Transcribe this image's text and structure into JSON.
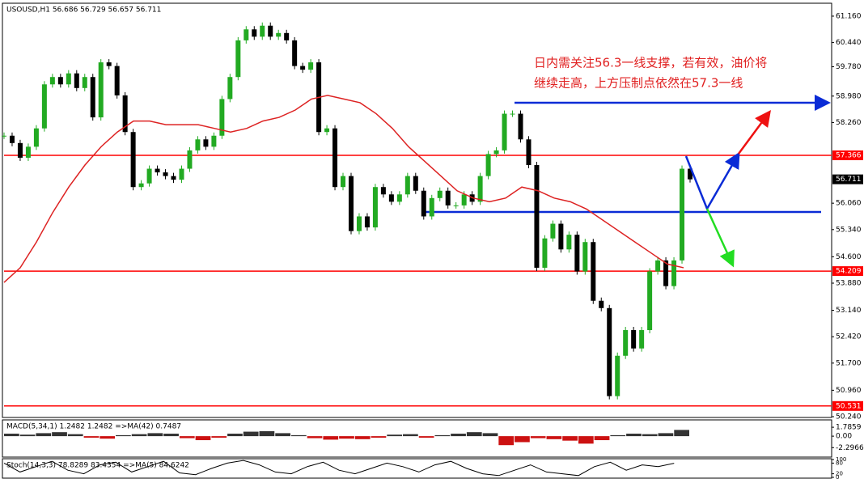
{
  "chart_data": {
    "type": "candlestick",
    "title": "USOUSD,H1  56.686 56.729 56.657 56.711",
    "annotation": [
      "日内需关注56.3一线支撑，若有效，油价将",
      "继续走高，上方压制点依然在57.3一线"
    ],
    "ylim": [
      50.24,
      61.49
    ],
    "yticks": [
      {
        "value": 61.16,
        "label": "61.160"
      },
      {
        "value": 60.44,
        "label": "60.440"
      },
      {
        "value": 59.78,
        "label": "59.780"
      },
      {
        "value": 58.98,
        "label": "58.980"
      },
      {
        "value": 58.26,
        "label": "58.260"
      },
      {
        "value": 56.06,
        "label": "56.060"
      },
      {
        "value": 55.34,
        "label": "55.340"
      },
      {
        "value": 54.6,
        "label": "54.600"
      },
      {
        "value": 53.88,
        "label": "53.880"
      },
      {
        "value": 53.14,
        "label": "53.140"
      },
      {
        "value": 52.42,
        "label": "52.420"
      },
      {
        "value": 51.7,
        "label": "51.700"
      },
      {
        "value": 50.96,
        "label": "50.960"
      },
      {
        "value": 50.24,
        "label": "50.240"
      }
    ],
    "close": [
      57.9,
      57.7,
      57.3,
      57.6,
      58.1,
      59.3,
      59.5,
      59.3,
      59.6,
      59.2,
      59.5,
      58.4,
      59.9,
      59.8,
      59.0,
      58.0,
      56.5,
      56.6,
      57.0,
      56.9,
      56.8,
      56.7,
      57.0,
      57.5,
      57.8,
      57.6,
      57.9,
      58.9,
      59.5,
      60.5,
      60.8,
      60.6,
      60.9,
      60.6,
      60.7,
      60.5,
      59.8,
      59.7,
      59.9,
      58.0,
      58.1,
      56.5,
      56.8,
      55.3,
      55.7,
      55.4,
      56.5,
      56.3,
      56.1,
      56.3,
      56.8,
      56.4,
      55.7,
      56.2,
      56.4,
      56.0,
      56.0,
      56.3,
      56.1,
      56.8,
      57.4,
      57.5,
      58.5,
      58.5,
      57.8,
      57.1,
      54.3,
      55.1,
      55.5,
      54.8,
      55.2,
      54.2,
      55.0,
      53.4,
      53.2,
      50.8,
      51.9,
      52.6,
      52.1,
      52.6,
      54.2,
      54.5,
      53.8,
      54.5,
      57.0,
      56.711
    ],
    "up_color": "#22aa22",
    "down_color": "#000000",
    "ma": {
      "color": "#dd2222",
      "values": [
        53.9,
        54.3,
        55.0,
        55.8,
        56.5,
        57.1,
        57.6,
        58.0,
        58.3,
        58.3,
        58.2,
        58.2,
        58.2,
        58.1,
        58.0,
        58.1,
        58.3,
        58.4,
        58.6,
        58.9,
        59.0,
        58.9,
        58.8,
        58.5,
        58.1,
        57.6,
        57.2,
        56.8,
        56.4,
        56.2,
        56.1,
        56.2,
        56.5,
        56.4,
        56.2,
        56.1,
        55.9,
        55.6,
        55.3,
        55.0,
        54.7,
        54.4,
        54.3
      ]
    },
    "levels": [
      {
        "value": 57.366,
        "color": "#ff0000",
        "labeled": true
      },
      {
        "value": 54.209,
        "color": "#ff0000",
        "labeled": true
      },
      {
        "value": 50.531,
        "color": "#ff0000",
        "labeled": true
      },
      {
        "value": 58.8,
        "color": "#0a2bd6",
        "labeled": false
      },
      {
        "value": 55.82,
        "color": "#0a2bd6",
        "labeled": false
      }
    ],
    "current_price": 56.711,
    "macd": {
      "label": "MACD(5,34,1) 1.2482 1.2482 =>MA(42) 0.7487",
      "ylim": [
        -4.2,
        3.1
      ],
      "yticks": [
        1.7859,
        {
          "value": 0,
          "label": "0.00"
        },
        -2.2966
      ],
      "values": [
        0.5,
        0.3,
        0.6,
        0.8,
        0.4,
        -0.3,
        -0.5,
        0.2,
        0.4,
        0.6,
        0.5,
        -0.4,
        -0.8,
        -0.3,
        0.5,
        0.9,
        1.0,
        0.6,
        0.2,
        -0.4,
        -0.7,
        -0.5,
        -0.6,
        -0.3,
        0.3,
        0.4,
        -0.3,
        0.2,
        0.5,
        0.8,
        0.6,
        -1.8,
        -1.2,
        -0.4,
        -0.6,
        -0.9,
        -1.5,
        -0.8,
        0.2,
        0.5,
        0.4,
        0.6,
        1.25
      ]
    },
    "stoch": {
      "label": "Stoch(14,3,3) 78.8289 83.4354 =>MA(5) 84.6242",
      "ylim": [
        0,
        100
      ],
      "yticks": [
        100,
        80,
        20,
        0
      ],
      "values": [
        80,
        30,
        60,
        90,
        40,
        20,
        70,
        85,
        30,
        60,
        90,
        25,
        15,
        50,
        80,
        95,
        70,
        30,
        20,
        60,
        85,
        40,
        20,
        50,
        80,
        60,
        30,
        70,
        90,
        50,
        20,
        10,
        40,
        70,
        30,
        20,
        10,
        60,
        85,
        40,
        70,
        60,
        78.8
      ]
    }
  }
}
